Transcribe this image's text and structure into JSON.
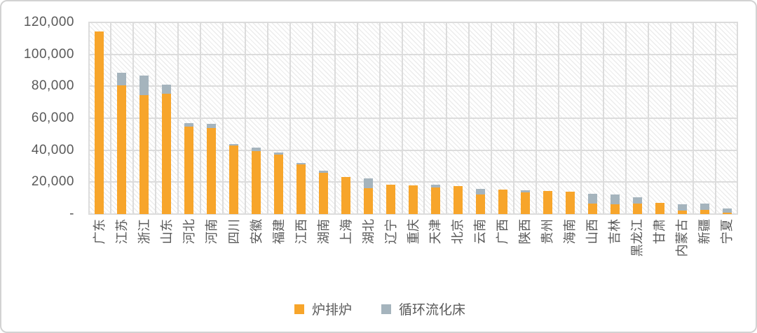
{
  "chart_data": {
    "type": "bar",
    "stacked": true,
    "title": "",
    "xlabel": "",
    "ylabel": "",
    "ylim": [
      0,
      120000
    ],
    "ytick_step": 20000,
    "ytick_labels": [
      "-",
      "20,000",
      "40,000",
      "60,000",
      "80,000",
      "100,000",
      "120,000"
    ],
    "grid": true,
    "plot_background": "light-diagonal-hatch",
    "legend_position": "bottom-center",
    "categories": [
      "广东",
      "江苏",
      "浙江",
      "山东",
      "河北",
      "河南",
      "四川",
      "安徽",
      "福建",
      "江西",
      "湖南",
      "上海",
      "湖北",
      "辽宁",
      "重庆",
      "天津",
      "北京",
      "云南",
      "广西",
      "陕西",
      "贵州",
      "海南",
      "山西",
      "吉林",
      "黑龙江",
      "甘肃",
      "内蒙古",
      "新疆",
      "宁夏"
    ],
    "series": [
      {
        "name": "炉排炉",
        "color": "#F7A52B",
        "values": [
          114500,
          80700,
          74600,
          75500,
          54700,
          54000,
          42900,
          39400,
          37100,
          31000,
          25900,
          23300,
          16000,
          18600,
          17800,
          16800,
          17500,
          12400,
          15300,
          13600,
          14300,
          14200,
          6600,
          6100,
          6500,
          6800,
          2000,
          2500,
          1000
        ]
      },
      {
        "name": "循环流化床",
        "color": "#A5B4BD",
        "values": [
          0,
          7900,
          12300,
          5700,
          2200,
          2500,
          900,
          2200,
          1300,
          1100,
          1100,
          0,
          6300,
          0,
          0,
          1700,
          0,
          3400,
          0,
          1300,
          0,
          0,
          6100,
          6300,
          4200,
          0,
          4300,
          4000,
          2600
        ]
      }
    ]
  },
  "colors": {
    "grate_furnace": "#F7A52B",
    "cfb": "#A5B4BD",
    "axis_text": "#595959",
    "gridline": "#dcdcdc",
    "card_border": "#d2d2d2"
  }
}
